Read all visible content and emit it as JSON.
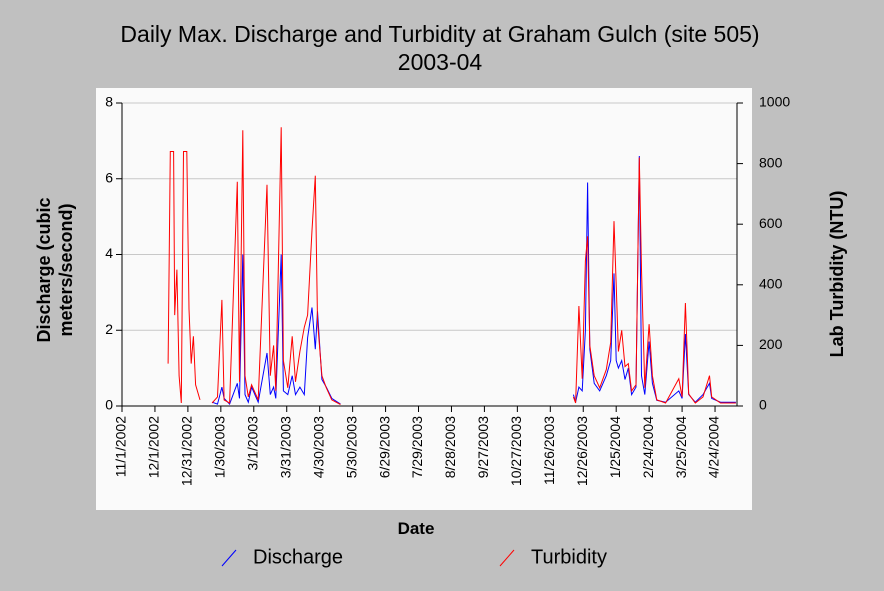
{
  "chart_data": {
    "type": "line",
    "title": "Daily Max. Discharge and Turbidity at Graham Gulch (site 505) 2003-04",
    "xlabel": "Date",
    "ylabel": "Discharge (cubic meters/second)",
    "y2label": "Lab Turbidity (NTU)",
    "x": [
      "12/13/2002",
      "12/15/2002",
      "12/18/2002",
      "12/19/2002",
      "12/21/2002",
      "12/23/2002",
      "12/25/2002",
      "12/27/2002",
      "12/30/2002",
      "1/1/2003",
      "1/3/2003",
      "1/5/2003",
      "1/7/2003",
      "1/11/2003",
      "1/16/2003",
      "1/22/2003",
      "1/27/2003",
      "1/31/2003",
      "2/2/2003",
      "2/7/2003",
      "2/14/2003",
      "2/16/2003",
      "2/19/2003",
      "2/21/2003",
      "2/24/2003",
      "2/27/2003",
      "3/5/2003",
      "3/13/2003",
      "3/16/2003",
      "3/19/2003",
      "3/21/2003",
      "3/26/2003",
      "3/28/2003",
      "4/1/2003",
      "4/5/2003",
      "4/8/2003",
      "4/12/2003",
      "4/16/2003",
      "4/19/2003",
      "4/23/2003",
      "4/26/2003",
      "4/28/2003",
      "5/2/2003",
      "5/6/2003",
      "5/11/2003",
      "5/19/2003",
      "5/25/2003",
      "12/17/2003",
      "12/19/2003",
      "12/22/2003",
      "12/25/2003",
      "12/28/2003",
      "12/30/2003",
      "1/1/2004",
      "1/5/2004",
      "1/10/2004",
      "1/16/2004",
      "1/20/2004",
      "1/23/2004",
      "1/25/2004",
      "1/27/2004",
      "1/30/2004",
      "2/2/2004",
      "2/5/2004",
      "2/8/2004",
      "2/12/2004",
      "2/15/2004",
      "2/17/2004",
      "2/20/2004",
      "2/24/2004",
      "2/27/2004",
      "3/2/2004",
      "3/10/2004",
      "3/22/2004",
      "3/25/2004",
      "3/28/2004",
      "3/31/2004",
      "4/6/2004",
      "4/13/2004",
      "4/19/2004",
      "4/21/2004",
      "4/29/2004",
      "5/13/2004"
    ],
    "series": [
      {
        "name": "Discharge",
        "color": "#0000ff",
        "values": [
          null,
          null,
          null,
          null,
          null,
          null,
          null,
          null,
          null,
          null,
          null,
          null,
          null,
          null,
          null,
          0.1,
          0.05,
          0.5,
          0.2,
          0.05,
          0.6,
          0.2,
          4.0,
          0.3,
          0.1,
          0.5,
          0.1,
          1.4,
          0.3,
          0.5,
          0.2,
          4.0,
          0.4,
          0.3,
          0.8,
          0.3,
          0.5,
          0.3,
          1.8,
          2.6,
          1.5,
          2.5,
          0.7,
          0.5,
          0.2,
          0.05,
          null,
          0.3,
          0.1,
          0.5,
          0.4,
          2.0,
          5.9,
          1.5,
          0.6,
          0.4,
          0.8,
          1.2,
          3.5,
          1.2,
          1.0,
          1.2,
          0.7,
          1.0,
          0.3,
          0.5,
          6.6,
          0.8,
          0.3,
          1.7,
          0.6,
          0.15,
          0.1,
          0.4,
          0.2,
          1.9,
          0.3,
          0.1,
          0.3,
          0.6,
          0.2,
          0.1,
          0.1
        ]
      },
      {
        "name": "Turbidity",
        "color": "#ff0000",
        "axis": "y2",
        "values": [
          140,
          840,
          840,
          300,
          450,
          100,
          10,
          840,
          840,
          320,
          140,
          230,
          70,
          20,
          null,
          10,
          30,
          350,
          20,
          10,
          740,
          80,
          910,
          100,
          30,
          70,
          20,
          730,
          100,
          200,
          50,
          920,
          150,
          60,
          230,
          80,
          180,
          260,
          300,
          580,
          760,
          280,
          100,
          60,
          20,
          5,
          null,
          30,
          10,
          330,
          90,
          480,
          560,
          200,
          100,
          60,
          120,
          210,
          610,
          400,
          180,
          250,
          130,
          140,
          50,
          70,
          820,
          450,
          60,
          270,
          100,
          20,
          10,
          90,
          30,
          340,
          40,
          10,
          30,
          100,
          30,
          10,
          10
        ]
      }
    ],
    "xlim": [
      "11/1/2002",
      "5/14/2004"
    ],
    "xticks": [
      "11/1/2002",
      "12/1/2002",
      "12/31/2002",
      "1/30/2003",
      "3/1/2003",
      "3/31/2003",
      "4/30/2003",
      "5/30/2003",
      "6/29/2003",
      "7/29/2003",
      "8/28/2003",
      "9/27/2003",
      "10/27/2003",
      "11/26/2003",
      "12/26/2003",
      "1/25/2004",
      "2/24/2004",
      "3/25/2004",
      "4/24/2004"
    ],
    "ylim": [
      0,
      8
    ],
    "yticks": [
      0,
      2,
      4,
      6,
      8
    ],
    "y2lim": [
      0,
      1000
    ],
    "y2ticks": [
      0,
      200,
      400,
      600,
      800,
      1000
    ],
    "grid": true
  }
}
